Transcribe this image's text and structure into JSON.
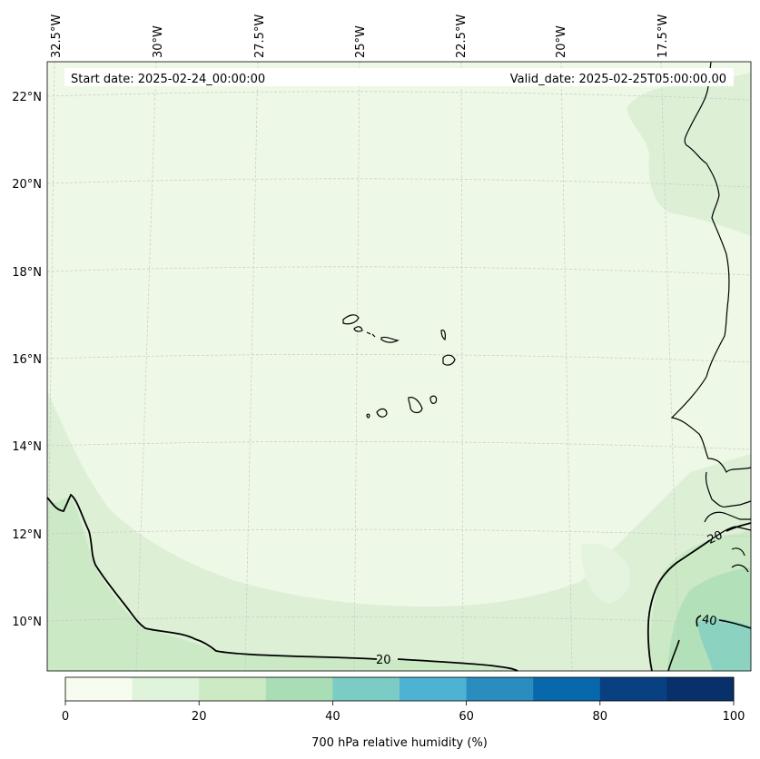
{
  "header": {
    "start_date": "Start date: 2025-02-24_00:00:00",
    "valid_date": "Valid_date: 2025-02-25T05:00:00.00"
  },
  "axes": {
    "lon_labels": [
      "32.5°W",
      "30°W",
      "27.5°W",
      "25°W",
      "22.5°W",
      "20°W",
      "17.5°W"
    ],
    "lat_labels": [
      "22°N",
      "20°N",
      "18°N",
      "16°N",
      "14°N",
      "12°N",
      "10°N"
    ]
  },
  "contours": {
    "label_20_bottom": "20",
    "label_20_right": "20",
    "label_40": "40"
  },
  "colorbar": {
    "label": "700 hPa relative humidity (%)",
    "ticks": [
      "0",
      "20",
      "40",
      "60",
      "80",
      "100"
    ],
    "colors": [
      "#f7fcf0",
      "#e0f3db",
      "#ccebc5",
      "#a8ddb5",
      "#7bccc4",
      "#4eb3d3",
      "#2b8cbe",
      "#0868ac",
      "#084081",
      "#08306b"
    ]
  },
  "map_fill_colors": {
    "level_0_10": "#eef8e6",
    "level_10_20": "#ddf0d6",
    "level_20_30": "#cae9c4",
    "level_30_40": "#b2e0b8",
    "level_40_50": "#8cd2c0"
  }
}
